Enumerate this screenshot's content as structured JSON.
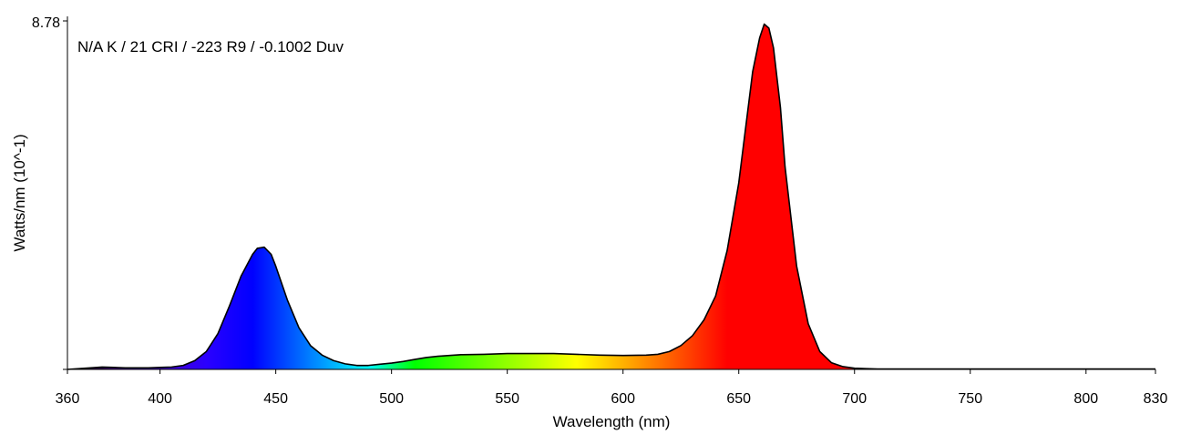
{
  "chart_data": {
    "type": "area",
    "annotation": "N/A K / 21 CRI / -223 R9 / -0.1002 Duv",
    "xlabel": "Wavelength (nm)",
    "ylabel": "Watts/nm (10^-1)",
    "xlim": [
      360,
      830
    ],
    "ylim": [
      0,
      8.78
    ],
    "x_ticks": [
      "360",
      "400",
      "450",
      "500",
      "550",
      "600",
      "650",
      "700",
      "750",
      "800",
      "830"
    ],
    "y_ticks": [
      "0",
      "8.78"
    ],
    "x_tick_values": [
      360,
      400,
      450,
      500,
      550,
      600,
      650,
      700,
      750,
      800,
      830
    ],
    "y_tick_values": [
      0,
      8.78
    ],
    "grid": false,
    "legend": false,
    "fill": "wavelength-spectrum-gradient",
    "series": [
      {
        "x": [
          360,
          365,
          370,
          375,
          380,
          385,
          390,
          395,
          400,
          405,
          410,
          415,
          420,
          425,
          430,
          435,
          440,
          442,
          445,
          448,
          450,
          455,
          460,
          465,
          470,
          475,
          480,
          485,
          490,
          495,
          500,
          505,
          510,
          515,
          520,
          525,
          530,
          540,
          550,
          560,
          570,
          580,
          590,
          600,
          610,
          615,
          620,
          625,
          630,
          635,
          640,
          645,
          650,
          653,
          656,
          659,
          661,
          663,
          665,
          668,
          670,
          675,
          680,
          685,
          690,
          695,
          700,
          705,
          710,
          720,
          730,
          740,
          750,
          760,
          770,
          780,
          790,
          800,
          810,
          820,
          830
        ],
        "values": [
          0.0,
          0.02,
          0.04,
          0.06,
          0.05,
          0.04,
          0.04,
          0.04,
          0.05,
          0.06,
          0.1,
          0.22,
          0.45,
          0.9,
          1.6,
          2.35,
          2.9,
          3.05,
          3.08,
          2.9,
          2.6,
          1.75,
          1.05,
          0.6,
          0.36,
          0.22,
          0.14,
          0.1,
          0.1,
          0.13,
          0.16,
          0.2,
          0.25,
          0.3,
          0.33,
          0.35,
          0.37,
          0.38,
          0.4,
          0.4,
          0.4,
          0.38,
          0.36,
          0.35,
          0.36,
          0.38,
          0.45,
          0.6,
          0.85,
          1.25,
          1.85,
          3.0,
          4.7,
          6.1,
          7.5,
          8.35,
          8.7,
          8.6,
          8.1,
          6.6,
          5.1,
          2.6,
          1.15,
          0.45,
          0.17,
          0.07,
          0.03,
          0.02,
          0.01,
          0.01,
          0.01,
          0.01,
          0.01,
          0.01,
          0.01,
          0.01,
          0.01,
          0.01,
          0.01,
          0.01,
          0.01
        ]
      }
    ]
  }
}
